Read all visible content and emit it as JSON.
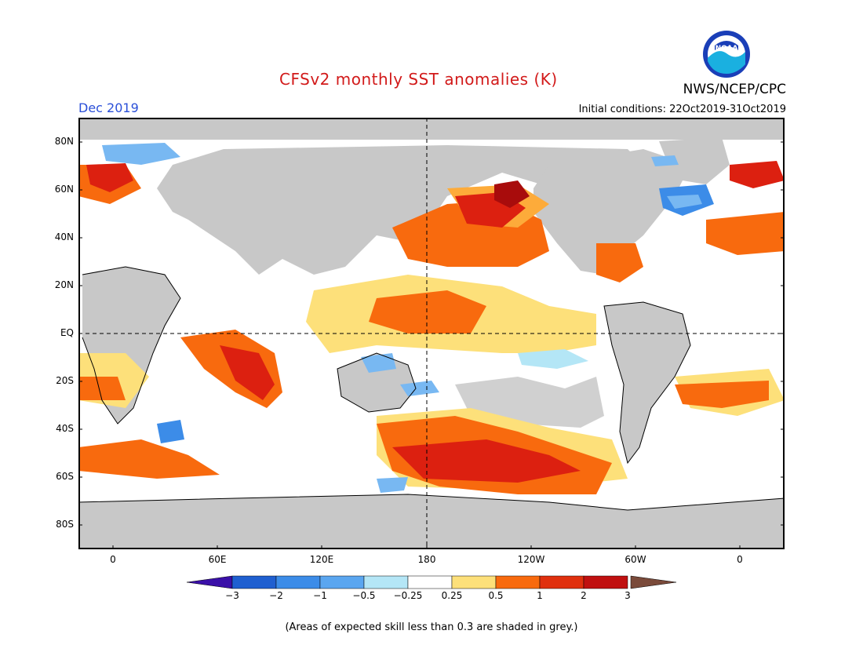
{
  "header": {
    "title": "CFSv2 monthly SST anomalies (K)",
    "period": "Dec 2019",
    "initial_conditions": "Initial conditions: 22Oct2019-31Oct2019",
    "agency": "NWS/NCEP/CPC",
    "logo_text": "NOAA"
  },
  "map": {
    "lat_labels": [
      "80N",
      "60N",
      "40N",
      "20N",
      "EQ",
      "20S",
      "40S",
      "60S",
      "80S"
    ],
    "lon_labels": [
      "0",
      "60E",
      "120E",
      "180",
      "120W",
      "60W",
      "0"
    ],
    "land_color": "#c8c8c8",
    "colors": {
      "neg3": "#2a0fa0",
      "neg2": "#1f5fd0",
      "neg1": "#3c8ce8",
      "neg05": "#78b8f2",
      "neg025": "#b4e6f6",
      "zero": "#ffffff",
      "pos025": "#fde07a",
      "pos05": "#fdab3a",
      "pos1": "#f86a0e",
      "pos2": "#dc2010",
      "pos3": "#a80c0c"
    }
  },
  "colorbar": {
    "labels": [
      "−3",
      "−2",
      "−1",
      "−0.5",
      "−0.25",
      "0.25",
      "0.5",
      "1",
      "2",
      "3"
    ],
    "colors": [
      "#3a1bb0",
      "#1f5fd0",
      "#3c8ce8",
      "#5aa6f0",
      "#b4e6f6",
      "#ffffff",
      "#fde07a",
      "#f86a0e",
      "#e0300e",
      "#c01010",
      "#a80c0c"
    ],
    "under_color": "#3a10a8",
    "over_color": "#7a4a3a"
  },
  "footnote": "(Areas of expected skill less than 0.3 are shaded in grey.)"
}
